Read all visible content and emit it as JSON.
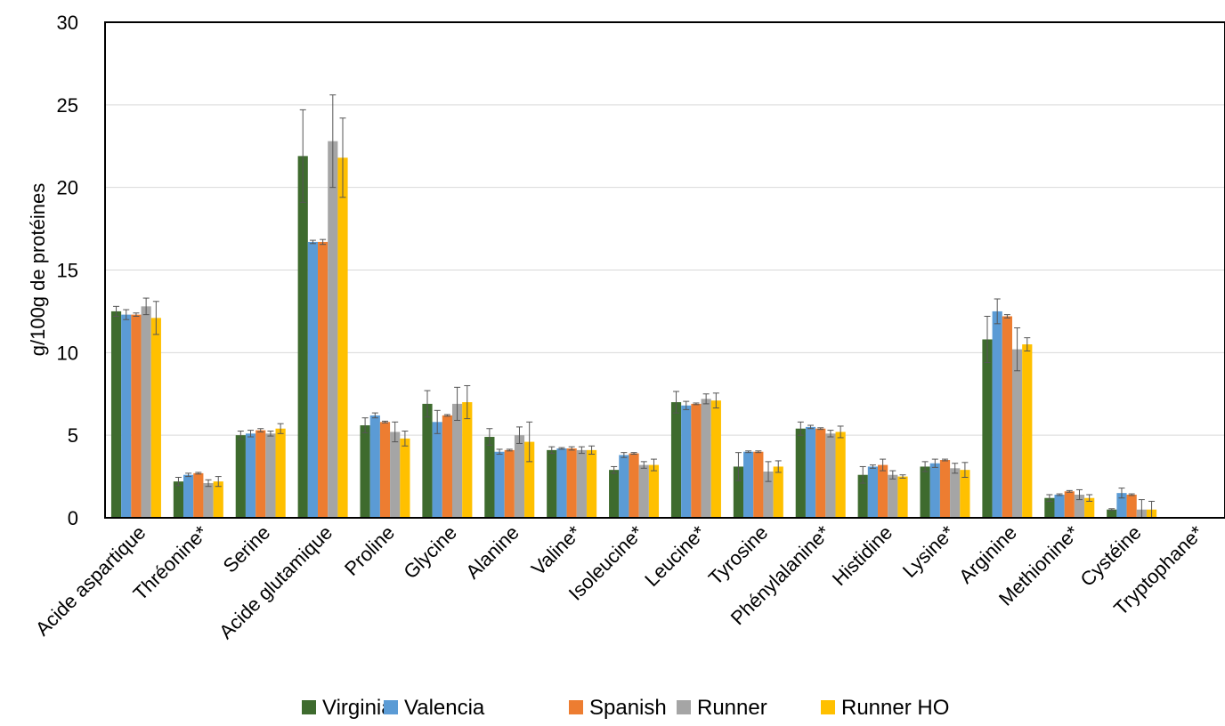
{
  "chart_data": {
    "type": "bar",
    "title": "",
    "xlabel": "",
    "ylabel": "g/100g de protéines",
    "ylim": [
      0,
      30
    ],
    "yticks": [
      0,
      5,
      10,
      15,
      20,
      25,
      30
    ],
    "grid": true,
    "legend_position": "bottom",
    "categories": [
      "Acide aspartique",
      "Thréonine*",
      "Serine",
      "Acide glutamique",
      "Proline",
      "Glycine",
      "Alanine",
      "Valine*",
      "Isoleucine*",
      "Leucine*",
      "Tyrosine",
      "Phénylalanine*",
      "Histidine",
      "Lysine*",
      "Arginine",
      "Methionine*",
      "Cystéine",
      "Tryptophane*"
    ],
    "series": [
      {
        "name": "Virginia",
        "color": "#3E6B2E",
        "values": [
          12.5,
          2.2,
          5.0,
          21.9,
          5.6,
          6.9,
          4.9,
          4.1,
          2.9,
          7.0,
          3.1,
          5.4,
          2.6,
          3.1,
          10.8,
          1.2,
          0.5,
          0
        ],
        "errors": [
          0.3,
          0.25,
          0.25,
          2.8,
          0.45,
          0.8,
          0.5,
          0.2,
          0.2,
          0.65,
          0.85,
          0.4,
          0.5,
          0.3,
          1.4,
          0.2,
          0.05,
          0
        ]
      },
      {
        "name": "Valencia",
        "color": "#5B9BD5",
        "values": [
          12.3,
          2.6,
          5.1,
          16.7,
          6.2,
          5.8,
          4.0,
          4.2,
          3.8,
          6.8,
          4.0,
          5.5,
          3.1,
          3.3,
          12.5,
          1.4,
          1.5,
          0
        ],
        "errors": [
          0.3,
          0.1,
          0.2,
          0.1,
          0.15,
          0.7,
          0.15,
          0.05,
          0.15,
          0.25,
          0.05,
          0.1,
          0.1,
          0.25,
          0.75,
          0.05,
          0.3,
          0
        ]
      },
      {
        "name": "Spanish",
        "color": "#ED7D31",
        "values": [
          12.3,
          2.7,
          5.3,
          16.7,
          5.8,
          6.2,
          4.1,
          4.2,
          3.9,
          6.9,
          4.0,
          5.4,
          3.2,
          3.5,
          12.2,
          1.6,
          1.4,
          0
        ],
        "errors": [
          0.1,
          0.05,
          0.1,
          0.15,
          0.05,
          0.05,
          0.05,
          0.1,
          0.05,
          0.05,
          0.05,
          0.05,
          0.35,
          0.05,
          0.1,
          0.05,
          0.05,
          0
        ]
      },
      {
        "name": "Runner",
        "color": "#A5A5A5",
        "values": [
          12.8,
          2.1,
          5.1,
          22.8,
          5.2,
          6.9,
          5.0,
          4.1,
          3.2,
          7.2,
          2.8,
          5.1,
          2.6,
          3.0,
          10.2,
          1.4,
          0.5,
          0
        ],
        "errors": [
          0.5,
          0.2,
          0.15,
          2.8,
          0.6,
          1.0,
          0.5,
          0.2,
          0.2,
          0.3,
          0.6,
          0.2,
          0.25,
          0.3,
          1.3,
          0.3,
          0.6,
          0
        ]
      },
      {
        "name": "Runner HO",
        "color": "#FFC000",
        "values": [
          12.1,
          2.2,
          5.4,
          21.8,
          4.8,
          7.0,
          4.6,
          4.1,
          3.2,
          7.1,
          3.1,
          5.2,
          2.5,
          2.9,
          10.5,
          1.2,
          0.5,
          0
        ],
        "errors": [
          1.0,
          0.3,
          0.3,
          2.4,
          0.45,
          1.0,
          1.2,
          0.25,
          0.35,
          0.45,
          0.35,
          0.35,
          0.1,
          0.45,
          0.4,
          0.2,
          0.5,
          0
        ]
      }
    ]
  }
}
